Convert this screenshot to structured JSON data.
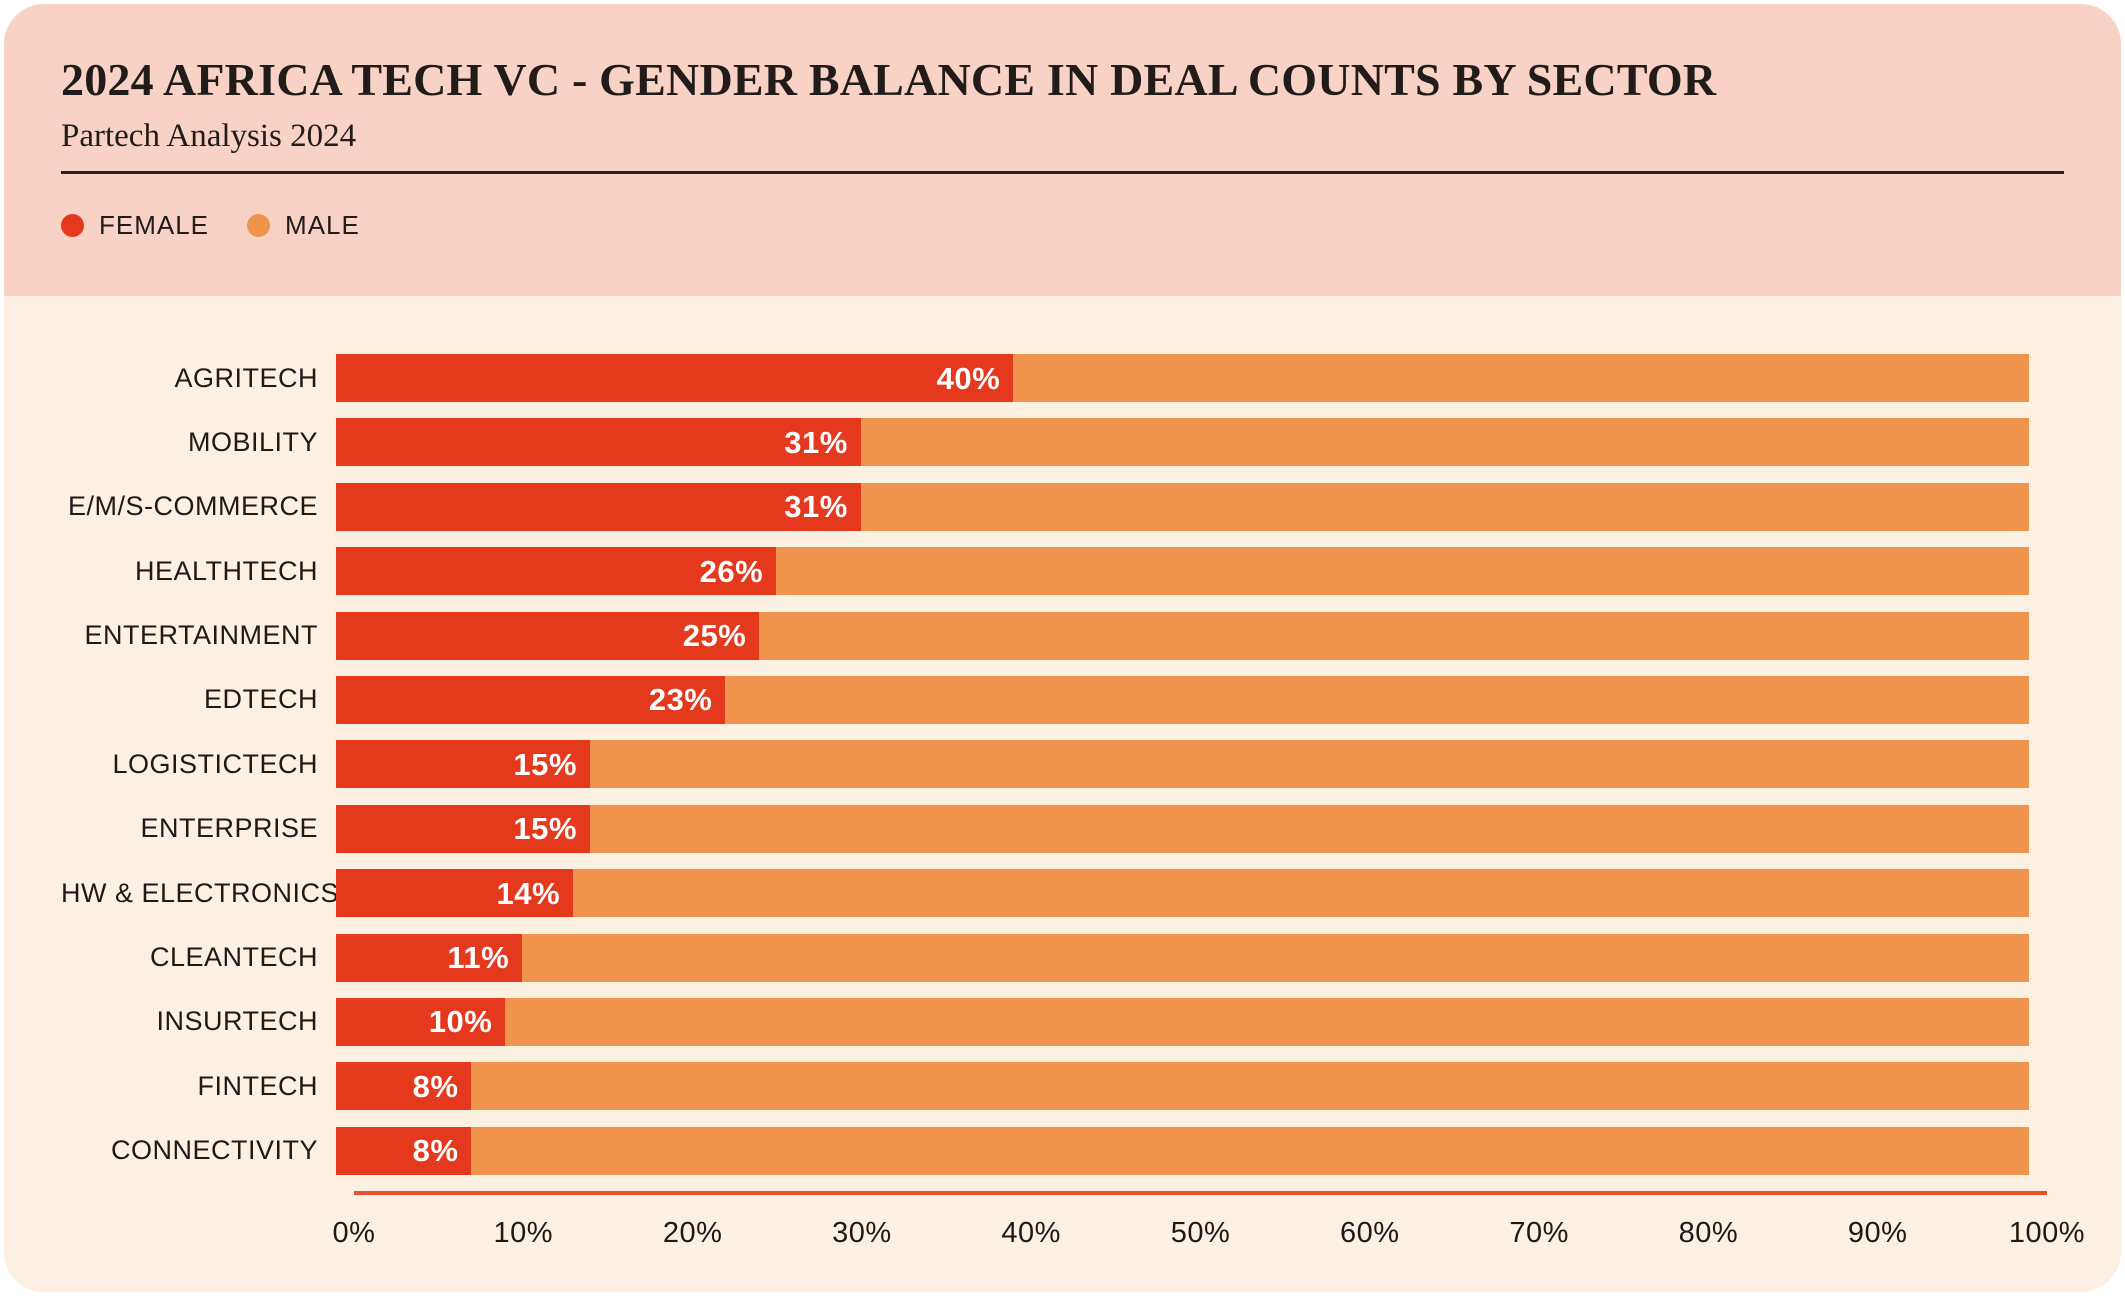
{
  "header": {
    "title": "2024 AFRICA TECH VC - GENDER BALANCE IN DEAL COUNTS BY SECTOR",
    "subtitle": "Partech Analysis 2024",
    "legend": [
      {
        "label": "FEMALE",
        "color": "#E5391E"
      },
      {
        "label": "MALE",
        "color": "#F0944D"
      }
    ]
  },
  "colors": {
    "female": "#E5391E",
    "male": "#F0944D",
    "header_bg": "#F8D2C5",
    "body_bg": "#FBF0E2",
    "axis_line": "#E8502C",
    "text_dark": "#211C1A",
    "value_label": "#FFFFFF"
  },
  "chart_data": {
    "type": "bar",
    "orientation": "horizontal",
    "stacked_percent": true,
    "title": "2024 AFRICA TECH VC - GENDER BALANCE IN DEAL COUNTS BY SECTOR",
    "subtitle": "Partech Analysis 2024",
    "categories": [
      "AGRITECH",
      "MOBILITY",
      "E/M/S-COMMERCE",
      "HEALTHTECH",
      "ENTERTAINMENT",
      "EDTECH",
      "LOGISTICTECH",
      "ENTERPRISE",
      "HW & ELECTRONICS",
      "CLEANTECH",
      "INSURTECH",
      "FINTECH",
      "CONNECTIVITY"
    ],
    "series": [
      {
        "name": "FEMALE",
        "color": "#E5391E",
        "values": [
          40,
          31,
          31,
          26,
          25,
          23,
          15,
          15,
          14,
          11,
          10,
          8,
          8
        ]
      },
      {
        "name": "MALE",
        "color": "#F0944D",
        "values": [
          60,
          69,
          69,
          74,
          75,
          77,
          85,
          85,
          86,
          89,
          90,
          92,
          92
        ]
      }
    ],
    "value_labels": [
      "40%",
      "31%",
      "31%",
      "26%",
      "25%",
      "23%",
      "15%",
      "15%",
      "14%",
      "11%",
      "10%",
      "8%",
      "8%"
    ],
    "x_ticks": [
      "0%",
      "10%",
      "20%",
      "30%",
      "40%",
      "50%",
      "60%",
      "70%",
      "80%",
      "90%",
      "100%"
    ],
    "xlim": [
      0,
      100
    ],
    "grid": false,
    "legend_position": "top-left"
  }
}
